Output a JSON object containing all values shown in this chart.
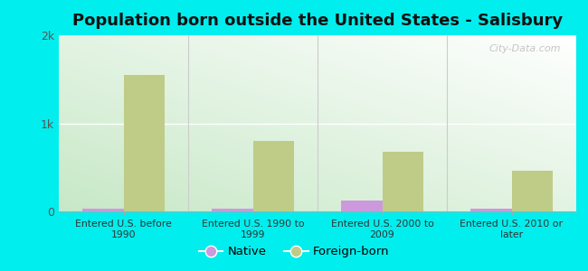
{
  "title": "Population born outside the United States - Salisbury",
  "categories": [
    "Entered U.S. before\n1990",
    "Entered U.S. 1990 to\n1999",
    "Entered U.S. 2000 to\n2009",
    "Entered U.S. 2010 or\nlater"
  ],
  "native_values": [
    30,
    35,
    120,
    30
  ],
  "foreign_born_values": [
    1550,
    800,
    680,
    460
  ],
  "native_color": "#cc99dd",
  "foreign_born_color": "#bfcc88",
  "figure_bg_color": "#00eeee",
  "plot_bg_gradient_start": "#c8e8c8",
  "plot_bg_gradient_end": "#f0fff0",
  "ylim": [
    0,
    2000
  ],
  "yticks": [
    0,
    1000,
    2000
  ],
  "ytick_labels": [
    "0",
    "1k",
    "2k"
  ],
  "bar_width": 0.32,
  "title_fontsize": 13,
  "watermark_text": "City-Data.com",
  "legend_native": "Native",
  "legend_foreign": "Foreign-born"
}
